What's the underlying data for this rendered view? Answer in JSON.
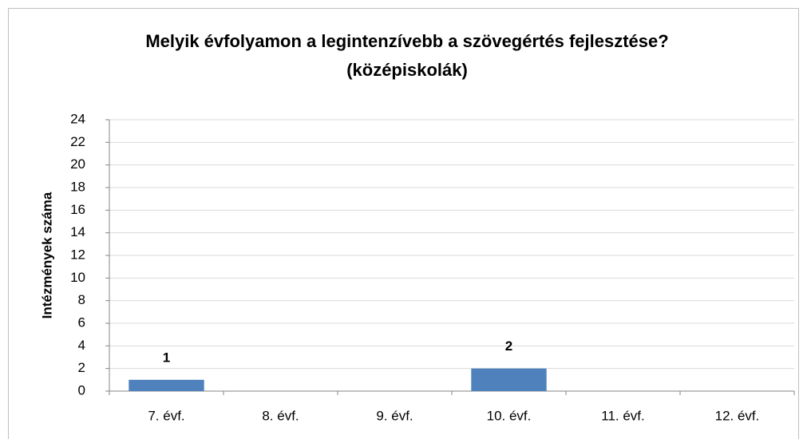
{
  "chart_data": {
    "type": "bar",
    "title": "Melyik évfolyamon a legintenzívebb a szövegértés fejlesztése?",
    "subtitle": "(középiskolák)",
    "y_label": "Intézmények száma",
    "categories": [
      "7. évf.",
      "8. évf.",
      "9. évf.",
      "10. évf.",
      "11. évf.",
      "12. évf."
    ],
    "values": [
      1,
      0,
      0,
      2,
      0,
      0
    ],
    "value_labels": [
      "1",
      null,
      null,
      "2",
      null,
      null
    ],
    "color": "#4f81bd",
    "ylim": [
      0,
      24
    ],
    "yticks": [
      0,
      2,
      4,
      6,
      8,
      10,
      12,
      14,
      16,
      18,
      20,
      22,
      24
    ],
    "grid": true
  }
}
